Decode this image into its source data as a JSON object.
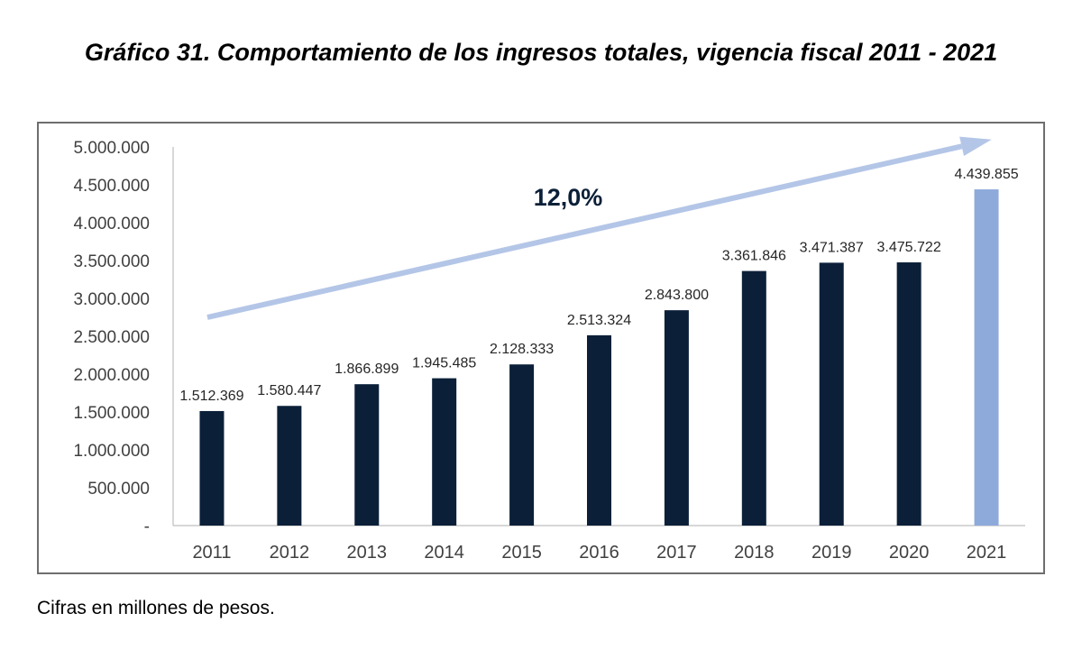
{
  "title": "Gráfico 31. Comportamiento de los ingresos totales, vigencia fiscal 2011 - 2021",
  "note": "Cifras en millones de pesos.",
  "colors": {
    "bar": "#0b2038",
    "highlight": "#8eaadb",
    "arrow": "#b4c6e7",
    "growth_text": "#0b2038"
  },
  "chart_data": {
    "type": "bar",
    "title": "Gráfico 31. Comportamiento de los ingresos totales, vigencia fiscal 2011 - 2021",
    "categories": [
      "2011",
      "2012",
      "2013",
      "2014",
      "2015",
      "2016",
      "2017",
      "2018",
      "2019",
      "2020",
      "2021"
    ],
    "values": [
      1512369,
      1580447,
      1866899,
      1945485,
      2128333,
      2513324,
      2843800,
      3361846,
      3471387,
      3475722,
      4439855
    ],
    "value_labels": [
      "1.512.369",
      "1.580.447",
      "1.866.899",
      "1.945.485",
      "2.128.333",
      "2.513.324",
      "2.843.800",
      "3.361.846",
      "3.471.387",
      "3.475.722",
      "4.439.855"
    ],
    "highlight_category": "2021",
    "yticks": [
      0,
      500000,
      1000000,
      1500000,
      2000000,
      2500000,
      3000000,
      3500000,
      4000000,
      4500000,
      5000000
    ],
    "ytick_labels": [
      "-",
      "500.000",
      "1.000.000",
      "1.500.000",
      "2.000.000",
      "2.500.000",
      "3.000.000",
      "3.500.000",
      "4.000.000",
      "4.500.000",
      "5.000.000"
    ],
    "ylim": [
      0,
      5000000
    ],
    "xlabel": "",
    "ylabel": "",
    "grid": false,
    "annotation": {
      "text": "12,0%",
      "kind": "growth-arrow"
    }
  }
}
